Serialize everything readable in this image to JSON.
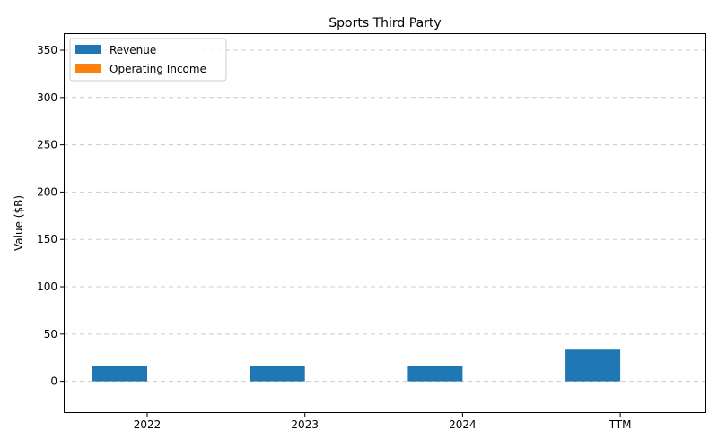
{
  "chart_data": {
    "type": "bar",
    "title": "Sports Third Party",
    "xlabel": "",
    "ylabel": "Value ($B)",
    "categories": [
      "2022",
      "2023",
      "2024",
      "TTM"
    ],
    "series": [
      {
        "name": "Revenue",
        "color": "#1f77b4",
        "values": [
          16.5,
          16.5,
          16.5,
          33.5
        ]
      },
      {
        "name": "Operating Income",
        "color": "#ff7f0e",
        "values": [
          0,
          0,
          0,
          0
        ]
      }
    ],
    "ylim": [
      -33.5,
      368
    ],
    "yticks": [
      0,
      50,
      100,
      150,
      200,
      250,
      300,
      350
    ],
    "grid": true,
    "legend_position": "upper-left"
  }
}
